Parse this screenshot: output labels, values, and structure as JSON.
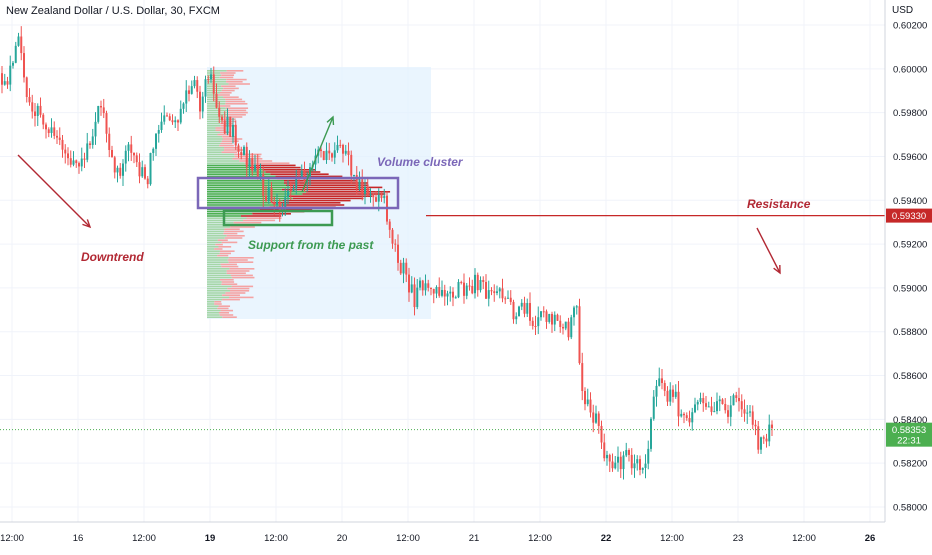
{
  "header": {
    "symbol_title": "New Zealand Dollar / U.S. Dollar, 30, FXCM",
    "currency": "USD"
  },
  "colors": {
    "up": "#26a69a",
    "down": "#ef5350",
    "annotation_red": "#b22833",
    "annotation_green": "#3d9a52",
    "annotation_purple": "#7b67b8",
    "resistance_line": "#c62828",
    "current_price": "#4caf50",
    "profile_box": "#e3f2fd"
  },
  "chart_data": {
    "type": "candlestick",
    "title": "New Zealand Dollar / U.S. Dollar, 30, FXCM",
    "ylim": [
      0.5799,
      0.6023
    ],
    "y_ticks": [
      "0.60200",
      "0.60000",
      "0.59800",
      "0.59600",
      "0.59400",
      "0.59200",
      "0.59000",
      "0.58800",
      "0.58600",
      "0.58400",
      "0.58200",
      "0.58000"
    ],
    "x_ticks": [
      "12:00",
      "16",
      "12:00",
      "19",
      "12:00",
      "20",
      "12:00",
      "21",
      "12:00",
      "22",
      "12:00",
      "23",
      "12:00",
      "26"
    ],
    "x_ticks_bold": [
      "19",
      "22",
      "26"
    ],
    "price_path": [
      [
        0,
        0.5998
      ],
      [
        8,
        0.5995
      ],
      [
        14,
        0.6008
      ],
      [
        20,
        0.6012
      ],
      [
        28,
        0.5985
      ],
      [
        38,
        0.598
      ],
      [
        48,
        0.5972
      ],
      [
        58,
        0.5968
      ],
      [
        66,
        0.5962
      ],
      [
        74,
        0.5955
      ],
      [
        82,
        0.5958
      ],
      [
        92,
        0.5972
      ],
      [
        100,
        0.5982
      ],
      [
        106,
        0.5975
      ],
      [
        112,
        0.596
      ],
      [
        120,
        0.595
      ],
      [
        128,
        0.5962
      ],
      [
        136,
        0.5955
      ],
      [
        146,
        0.5948
      ],
      [
        154,
        0.5965
      ],
      [
        162,
        0.5978
      ],
      [
        170,
        0.5975
      ],
      [
        178,
        0.598
      ],
      [
        186,
        0.599
      ],
      [
        194,
        0.5992
      ],
      [
        200,
        0.5985
      ],
      [
        206,
        0.5998
      ],
      [
        212,
        0.5992
      ],
      [
        218,
        0.5982
      ],
      [
        224,
        0.5975
      ],
      [
        232,
        0.5972
      ],
      [
        240,
        0.5965
      ],
      [
        248,
        0.5958
      ],
      [
        256,
        0.5952
      ],
      [
        264,
        0.5945
      ],
      [
        272,
        0.5942
      ],
      [
        280,
        0.5938
      ],
      [
        288,
        0.5942
      ],
      [
        296,
        0.5948
      ],
      [
        304,
        0.595
      ],
      [
        312,
        0.5958
      ],
      [
        320,
        0.5962
      ],
      [
        328,
        0.5958
      ],
      [
        334,
        0.5965
      ],
      [
        340,
        0.5968
      ],
      [
        346,
        0.5962
      ],
      [
        352,
        0.595
      ],
      [
        358,
        0.5945
      ],
      [
        364,
        0.5948
      ],
      [
        370,
        0.5945
      ],
      [
        376,
        0.594
      ],
      [
        382,
        0.5945
      ],
      [
        386,
        0.5935
      ],
      [
        390,
        0.5925
      ],
      [
        396,
        0.5915
      ],
      [
        402,
        0.591
      ],
      [
        408,
        0.5902
      ],
      [
        414,
        0.5895
      ],
      [
        420,
        0.59
      ],
      [
        426,
        0.5905
      ],
      [
        434,
        0.5895
      ],
      [
        442,
        0.5898
      ],
      [
        450,
        0.5895
      ],
      [
        458,
        0.59
      ],
      [
        466,
        0.5898
      ],
      [
        474,
        0.5902
      ],
      [
        482,
        0.59
      ],
      [
        490,
        0.5895
      ],
      [
        498,
        0.5898
      ],
      [
        506,
        0.5892
      ],
      [
        514,
        0.589
      ],
      [
        522,
        0.5892
      ],
      [
        530,
        0.5888
      ],
      [
        538,
        0.5885
      ],
      [
        546,
        0.5888
      ],
      [
        554,
        0.5885
      ],
      [
        562,
        0.5882
      ],
      [
        570,
        0.588
      ],
      [
        576,
        0.5895
      ],
      [
        578,
        0.5875
      ],
      [
        584,
        0.585
      ],
      [
        590,
        0.5845
      ],
      [
        596,
        0.584
      ],
      [
        602,
        0.5828
      ],
      [
        608,
        0.5822
      ],
      [
        614,
        0.5818
      ],
      [
        620,
        0.582
      ],
      [
        626,
        0.5825
      ],
      [
        632,
        0.5822
      ],
      [
        638,
        0.5818
      ],
      [
        644,
        0.5815
      ],
      [
        650,
        0.5835
      ],
      [
        656,
        0.5858
      ],
      [
        662,
        0.5855
      ],
      [
        668,
        0.5852
      ],
      [
        674,
        0.5855
      ],
      [
        680,
        0.5842
      ],
      [
        686,
        0.584
      ],
      [
        692,
        0.5845
      ],
      [
        698,
        0.5848
      ],
      [
        704,
        0.5845
      ],
      [
        710,
        0.5842
      ],
      [
        716,
        0.5845
      ],
      [
        722,
        0.5848
      ],
      [
        728,
        0.5845
      ],
      [
        734,
        0.5848
      ],
      [
        740,
        0.585
      ],
      [
        746,
        0.5845
      ],
      [
        752,
        0.584
      ],
      [
        758,
        0.583
      ],
      [
        764,
        0.5828
      ],
      [
        770,
        0.5835
      ]
    ],
    "current_price": 0.58353,
    "current_price_label": "0.58353",
    "current_time_label": "22:31",
    "resistance": 0.5933,
    "resistance_label": "0.59330",
    "annotations": [
      {
        "name": "downtrend",
        "text": "Downtrend"
      },
      {
        "name": "volume-cluster",
        "text": "Volume cluster"
      },
      {
        "name": "support",
        "text": "Support from the past"
      },
      {
        "name": "resistance",
        "text": "Resistance"
      }
    ],
    "grid": true
  }
}
